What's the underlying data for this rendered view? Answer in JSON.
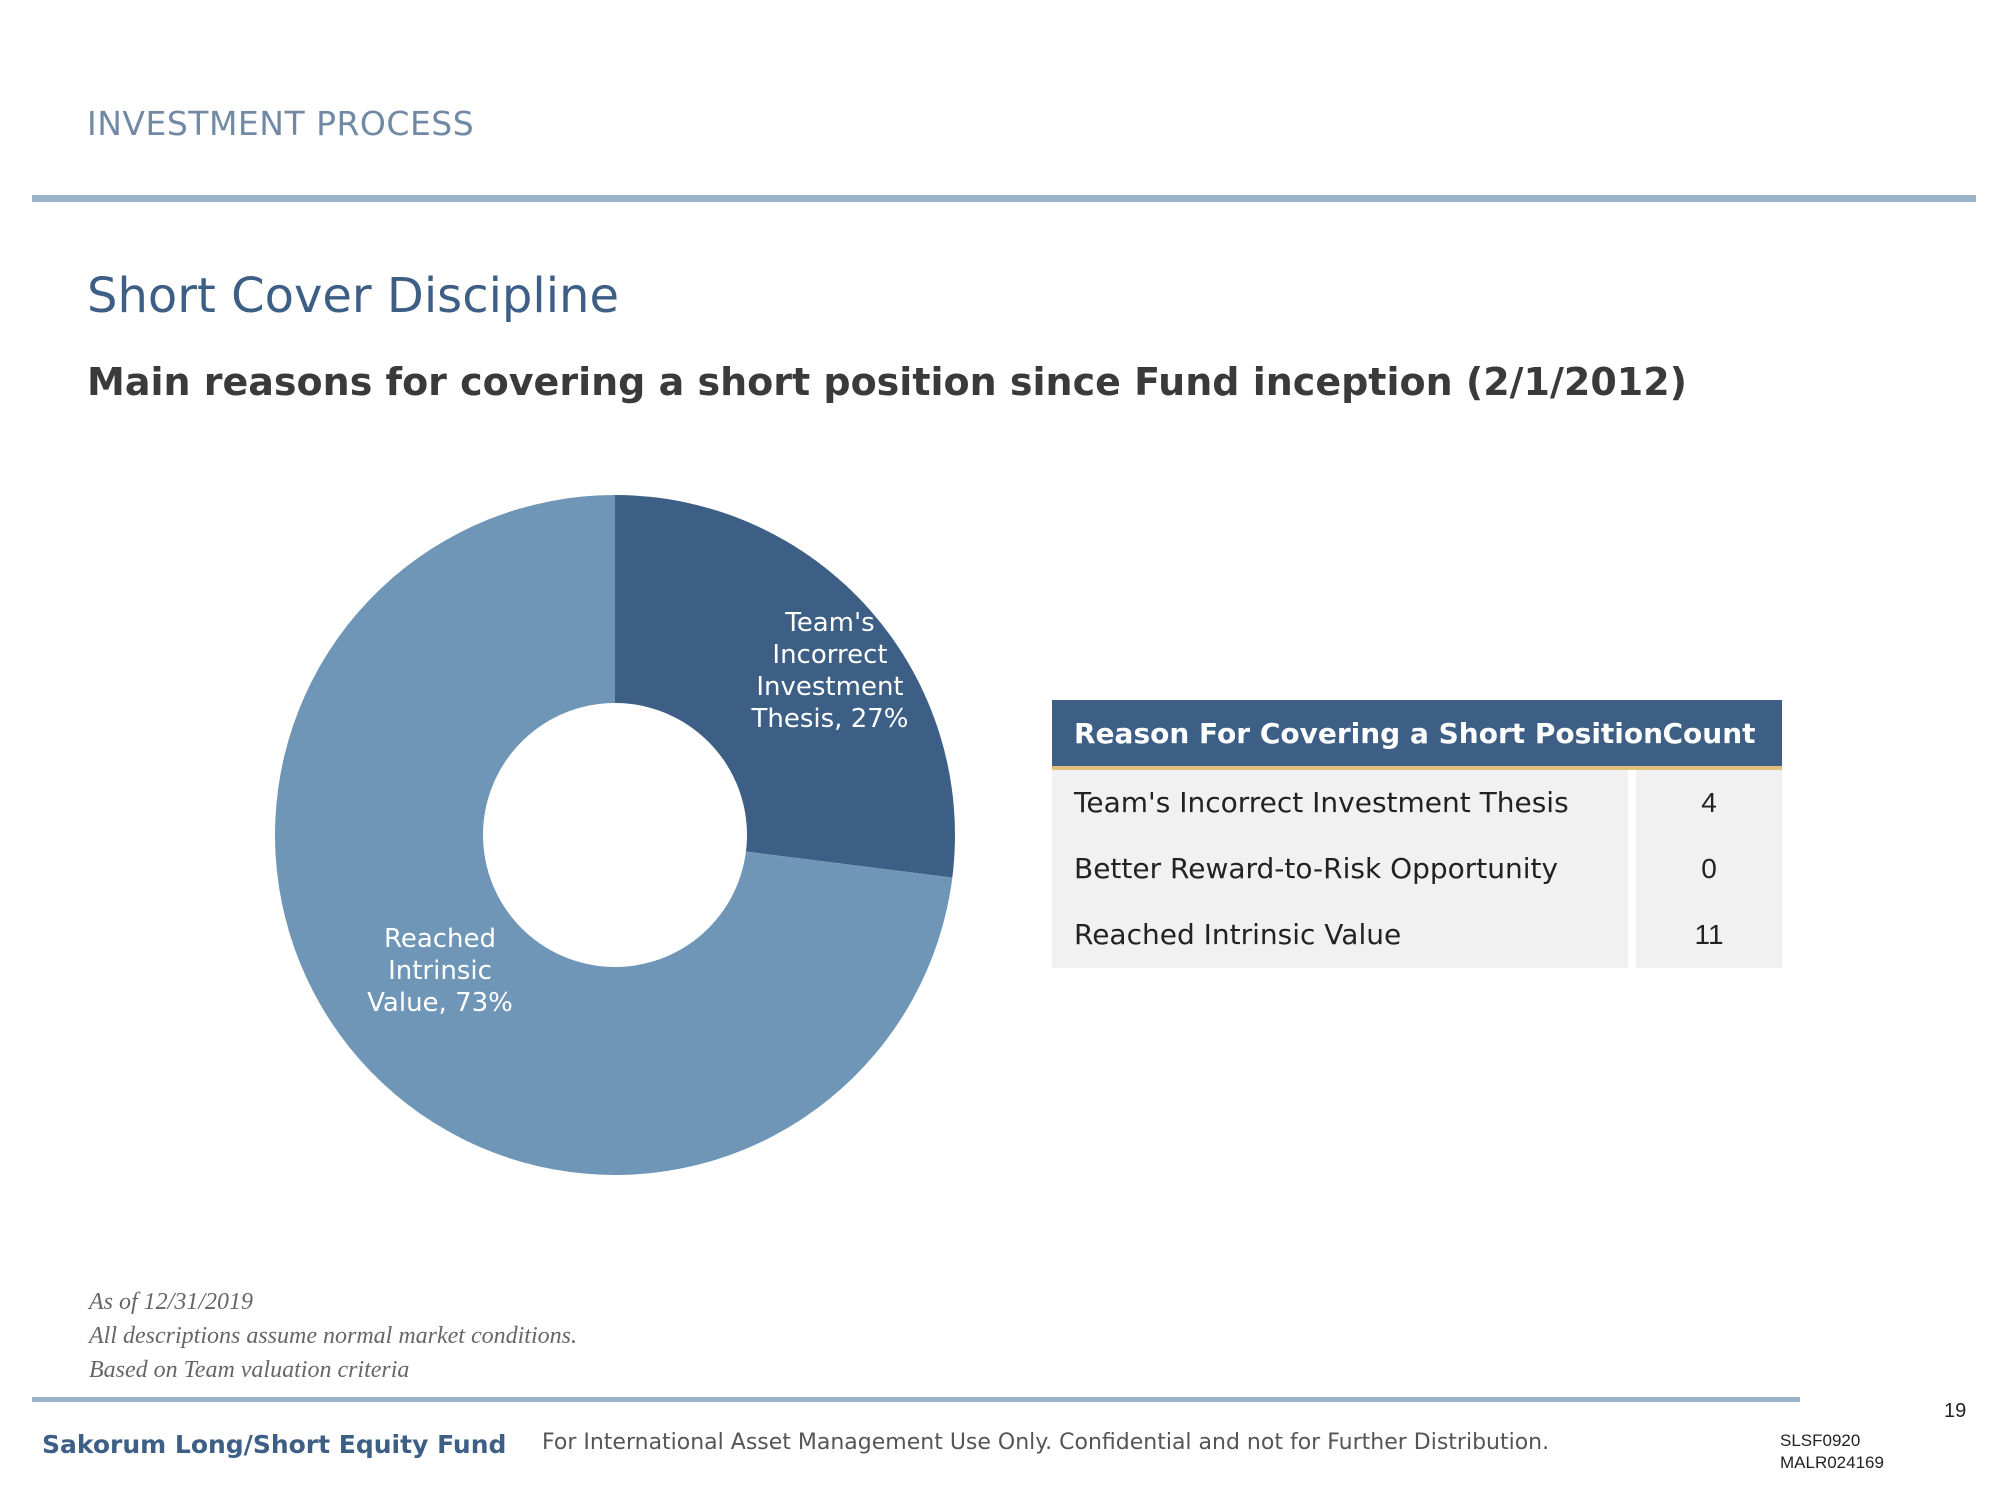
{
  "header": {
    "section_label": "INVESTMENT PROCESS",
    "title": "Short Cover Discipline",
    "subtitle": "Main reasons for covering a short position since Fund inception (2/1/2012)"
  },
  "chart_data": {
    "type": "pie",
    "style": "donut",
    "title": "",
    "slices": [
      {
        "label": "Team's Incorrect Investment Thesis",
        "value": 27,
        "display_lines": [
          "Team's",
          "Incorrect",
          "Investment",
          "Thesis, 27%"
        ],
        "color": "#3d5f86"
      },
      {
        "label": "Reached Intrinsic Value",
        "value": 73,
        "display_lines": [
          "Reached",
          "Intrinsic",
          "Value, 73%"
        ],
        "color": "#6f96b6"
      }
    ],
    "unit": "%",
    "legend": "none"
  },
  "table": {
    "headers": [
      "Reason For Covering a Short Position",
      "Count"
    ],
    "rows": [
      {
        "reason": "Team's Incorrect Investment Thesis",
        "count": "4"
      },
      {
        "reason": "Better Reward-to-Risk Opportunity",
        "count": "0"
      },
      {
        "reason": "Reached Intrinsic Value",
        "count": "11"
      }
    ]
  },
  "notes": [
    "As of 12/31/2019",
    "All descriptions assume normal market conditions.",
    "Based on Team valuation criteria"
  ],
  "footer": {
    "fund_name": "Sakorum Long/Short Equity Fund",
    "confidentiality": "For International Asset Management Use Only. Confidential and not for Further Distribution.",
    "page_number": "19",
    "code_1": "SLSF0920",
    "code_2": "MALR024169"
  },
  "colors": {
    "accent_dark": "#3d5f86",
    "accent_light": "#6f96b6",
    "rule": "#9ab2c8",
    "header_underline": "#e3c07a"
  }
}
